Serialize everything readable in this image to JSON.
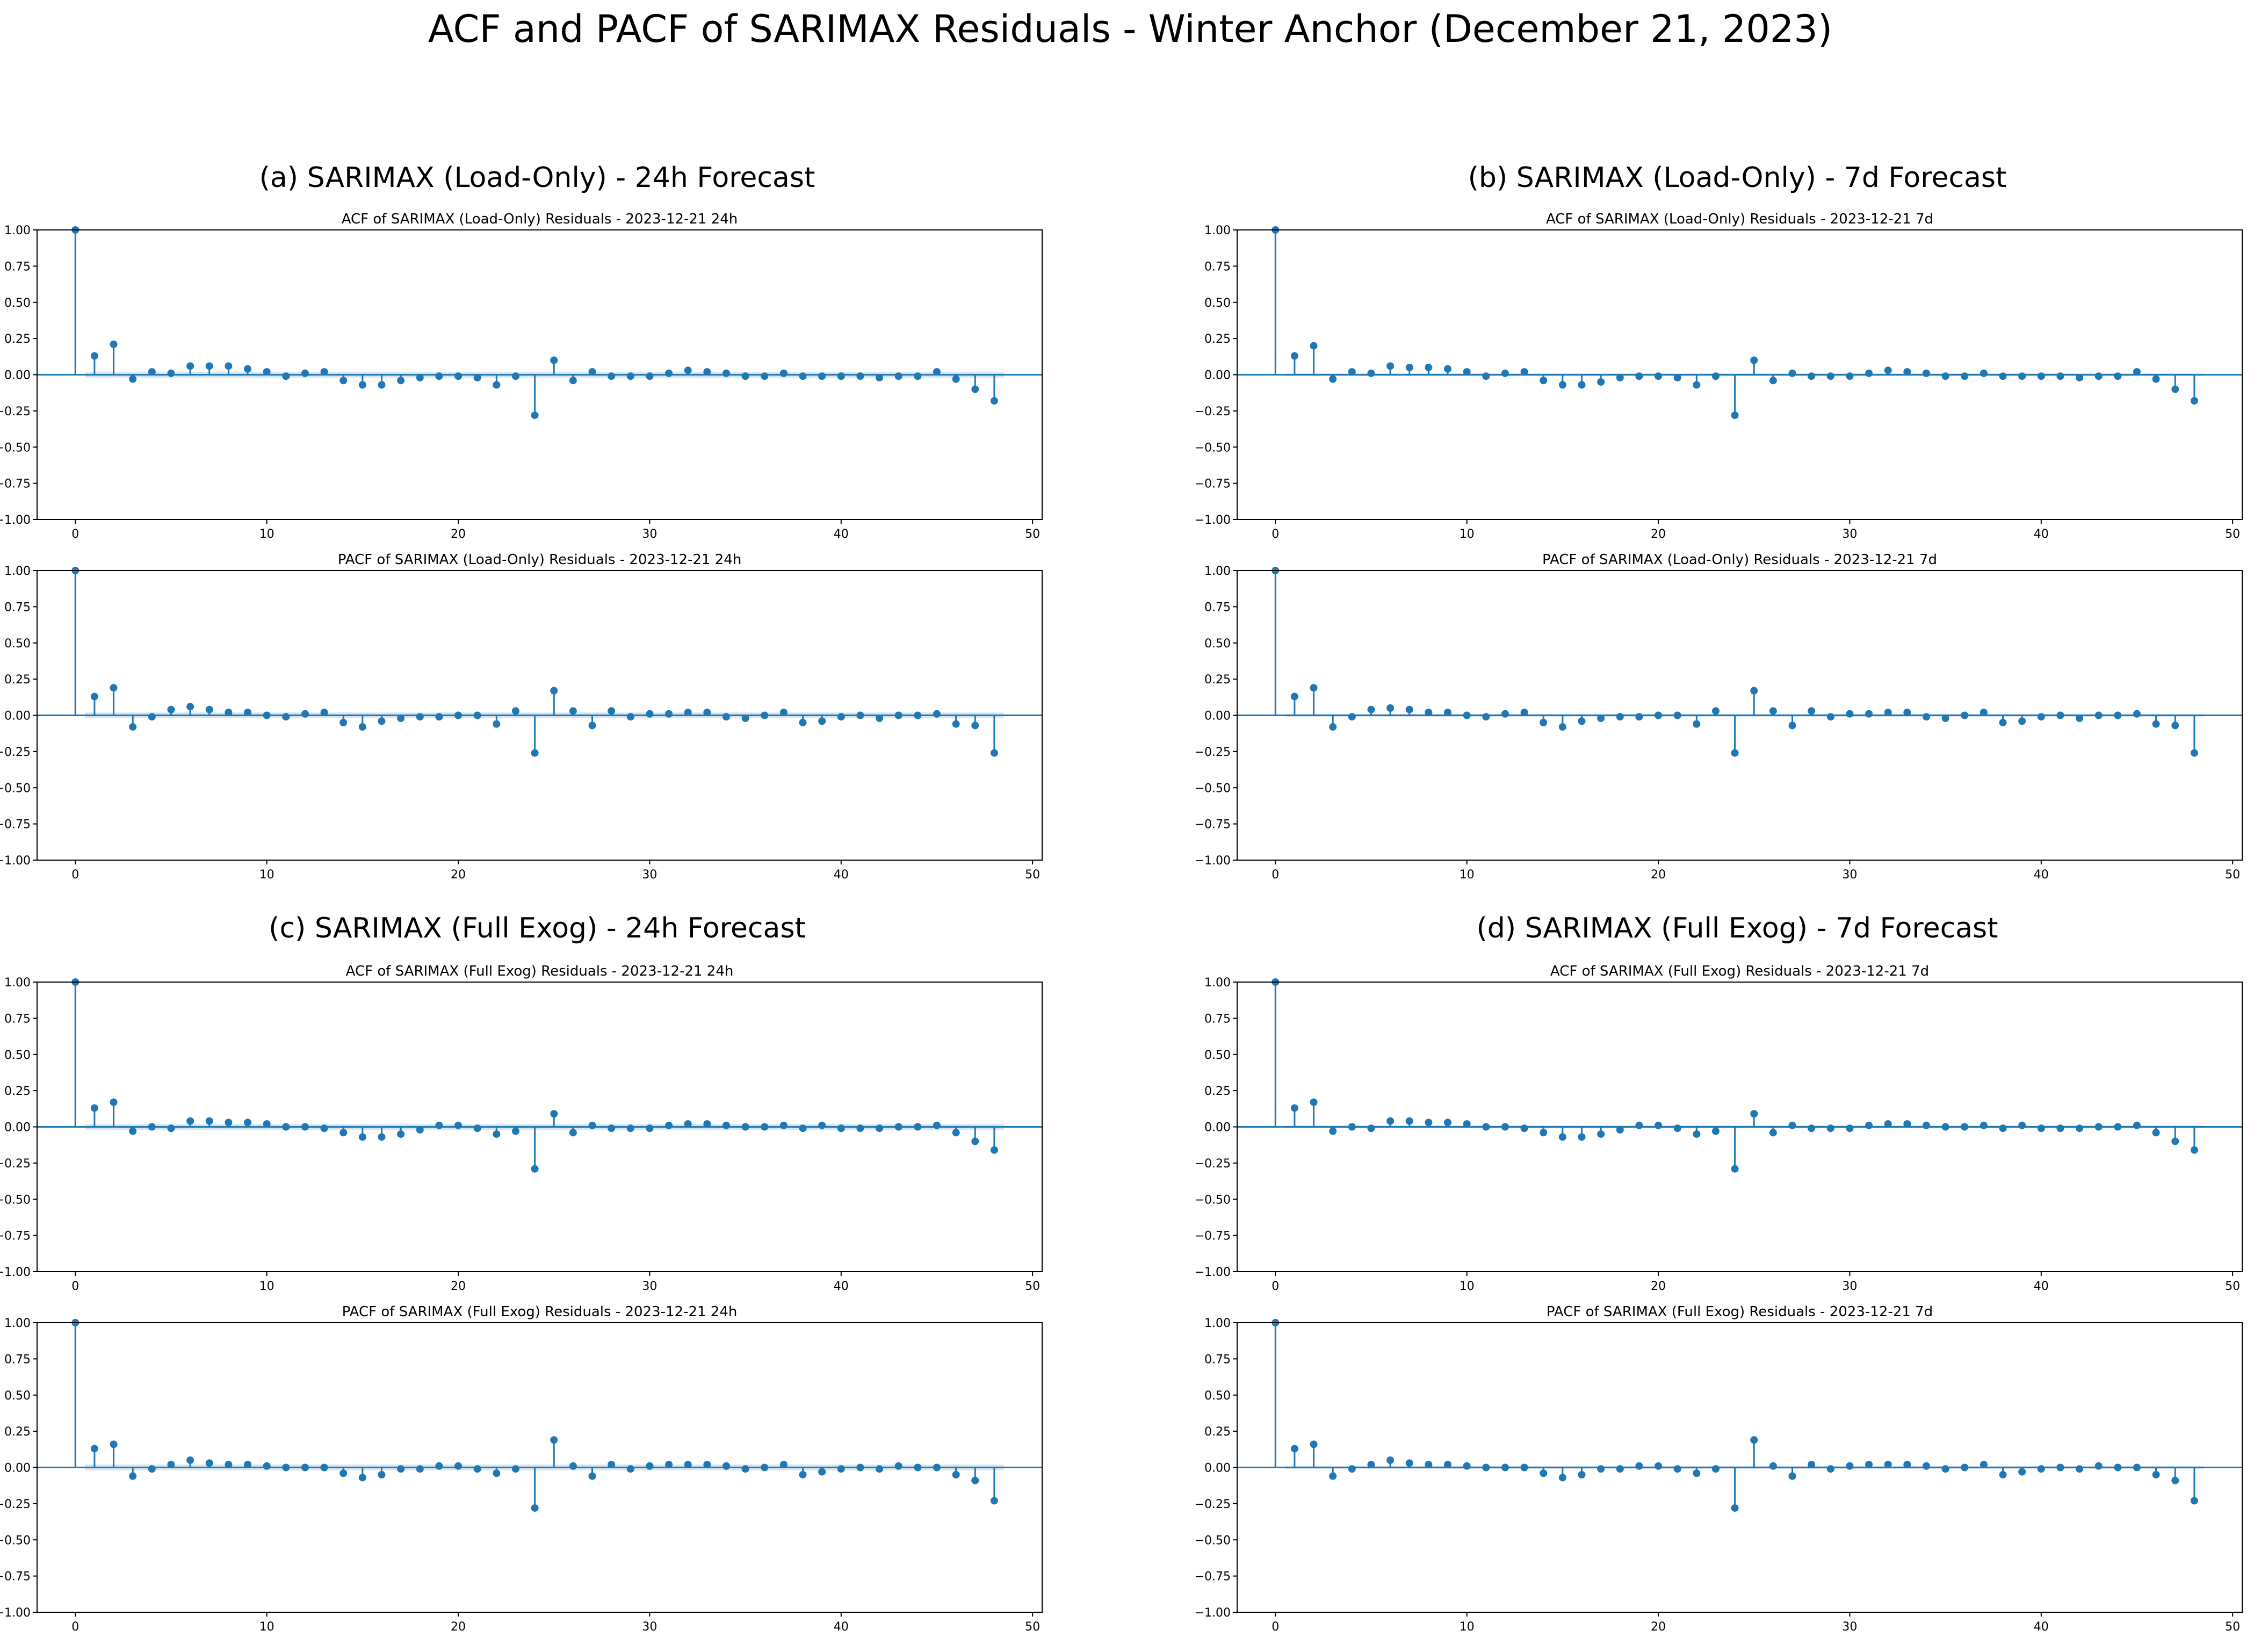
{
  "figure_title": "ACF and PACF of SARIMAX Residuals - Winter Anchor (December 21, 2023)",
  "panels": [
    {
      "label": "(a) SARIMAX (Load-Only) - 24h Forecast"
    },
    {
      "label": "(b) SARIMAX (Load-Only) - 7d Forecast"
    },
    {
      "label": "(c) SARIMAX (Full Exog) - 24h Forecast"
    },
    {
      "label": "(d) SARIMAX (Full Exog) - 7d Forecast"
    }
  ],
  "colors": {
    "stem": "#1f77b4",
    "confidence_band": "#1f77b4"
  },
  "chart_data": [
    {
      "type": "scatter",
      "panel": "(a)",
      "title": "ACF of SARIMAX (Load-Only) Residuals - 2023-12-21 24h",
      "xlabel": "",
      "ylabel": "",
      "xlim": [
        -2,
        50.5
      ],
      "ylim": [
        -1.0,
        1.0
      ],
      "grid": false,
      "confidence_band": 0.02,
      "x_ticks": [
        "0",
        "10",
        "20",
        "30",
        "40",
        "50"
      ],
      "y_ticks": [
        "1.00",
        "0.75",
        "0.50",
        "0.25",
        "0.00",
        "−0.25",
        "−0.50",
        "−0.75",
        "−1.00"
      ],
      "values": [
        1.0,
        0.13,
        0.21,
        -0.03,
        0.02,
        0.01,
        0.06,
        0.06,
        0.06,
        0.04,
        0.02,
        -0.01,
        0.01,
        0.02,
        -0.04,
        -0.07,
        -0.07,
        -0.04,
        -0.02,
        -0.01,
        -0.01,
        -0.02,
        -0.07,
        -0.01,
        -0.28,
        0.1,
        -0.04,
        0.02,
        -0.01,
        -0.01,
        -0.01,
        0.01,
        0.03,
        0.02,
        0.01,
        -0.01,
        -0.01,
        0.01,
        -0.01,
        -0.01,
        -0.01,
        -0.01,
        -0.02,
        -0.01,
        -0.01,
        0.02,
        -0.03,
        -0.1,
        -0.18
      ]
    },
    {
      "type": "scatter",
      "panel": "(a)",
      "title": "PACF of SARIMAX (Load-Only) Residuals - 2023-12-21 24h",
      "xlabel": "",
      "ylabel": "",
      "xlim": [
        -2,
        50.5
      ],
      "ylim": [
        -1.0,
        1.0
      ],
      "grid": false,
      "confidence_band": 0.02,
      "x_ticks": [
        "0",
        "10",
        "20",
        "30",
        "40",
        "50"
      ],
      "y_ticks": [
        "1.00",
        "0.75",
        "0.50",
        "0.25",
        "0.00",
        "−0.25",
        "−0.50",
        "−0.75",
        "−1.00"
      ],
      "values": [
        1.0,
        0.13,
        0.19,
        -0.08,
        -0.01,
        0.04,
        0.06,
        0.04,
        0.02,
        0.02,
        0.0,
        -0.01,
        0.01,
        0.02,
        -0.05,
        -0.08,
        -0.04,
        -0.02,
        -0.01,
        -0.01,
        0.0,
        0.0,
        -0.06,
        0.03,
        -0.26,
        0.17,
        0.03,
        -0.07,
        0.03,
        -0.01,
        0.01,
        0.01,
        0.02,
        0.02,
        -0.01,
        -0.02,
        0.0,
        0.02,
        -0.05,
        -0.04,
        -0.01,
        0.0,
        -0.02,
        0.0,
        0.0,
        0.01,
        -0.06,
        -0.07,
        -0.26
      ]
    },
    {
      "type": "scatter",
      "panel": "(b)",
      "title": "ACF of SARIMAX (Load-Only) Residuals - 2023-12-21 7d",
      "xlabel": "",
      "ylabel": "",
      "xlim": [
        -2,
        50.5
      ],
      "ylim": [
        -1.0,
        1.0
      ],
      "grid": false,
      "confidence_band": 0.01,
      "x_ticks": [
        "0",
        "10",
        "20",
        "30",
        "40",
        "50"
      ],
      "y_ticks": [
        "1.00",
        "0.75",
        "0.50",
        "0.25",
        "0.00",
        "−0.25",
        "−0.50",
        "−0.75",
        "−1.00"
      ],
      "values": [
        1.0,
        0.13,
        0.2,
        -0.03,
        0.02,
        0.01,
        0.06,
        0.05,
        0.05,
        0.04,
        0.02,
        -0.01,
        0.01,
        0.02,
        -0.04,
        -0.07,
        -0.07,
        -0.05,
        -0.02,
        -0.01,
        -0.01,
        -0.02,
        -0.07,
        -0.01,
        -0.28,
        0.1,
        -0.04,
        0.01,
        -0.01,
        -0.01,
        -0.01,
        0.01,
        0.03,
        0.02,
        0.01,
        -0.01,
        -0.01,
        0.01,
        -0.01,
        -0.01,
        -0.01,
        -0.01,
        -0.02,
        -0.01,
        -0.01,
        0.02,
        -0.03,
        -0.1,
        -0.18
      ]
    },
    {
      "type": "scatter",
      "panel": "(b)",
      "title": "PACF of SARIMAX (Load-Only) Residuals - 2023-12-21 7d",
      "xlabel": "",
      "ylabel": "",
      "xlim": [
        -2,
        50.5
      ],
      "ylim": [
        -1.0,
        1.0
      ],
      "grid": false,
      "confidence_band": 0.01,
      "x_ticks": [
        "0",
        "10",
        "20",
        "30",
        "40",
        "50"
      ],
      "y_ticks": [
        "1.00",
        "0.75",
        "0.50",
        "0.25",
        "0.00",
        "−0.25",
        "−0.50",
        "−0.75",
        "−1.00"
      ],
      "values": [
        1.0,
        0.13,
        0.19,
        -0.08,
        -0.01,
        0.04,
        0.05,
        0.04,
        0.02,
        0.02,
        0.0,
        -0.01,
        0.01,
        0.02,
        -0.05,
        -0.08,
        -0.04,
        -0.02,
        -0.01,
        -0.01,
        0.0,
        0.0,
        -0.06,
        0.03,
        -0.26,
        0.17,
        0.03,
        -0.07,
        0.03,
        -0.01,
        0.01,
        0.01,
        0.02,
        0.02,
        -0.01,
        -0.02,
        0.0,
        0.02,
        -0.05,
        -0.04,
        -0.01,
        0.0,
        -0.02,
        0.0,
        0.0,
        0.01,
        -0.06,
        -0.07,
        -0.26
      ]
    },
    {
      "type": "scatter",
      "panel": "(c)",
      "title": "ACF of SARIMAX (Full Exog) Residuals - 2023-12-21 24h",
      "xlabel": "",
      "ylabel": "",
      "xlim": [
        -2,
        50.5
      ],
      "ylim": [
        -1.0,
        1.0
      ],
      "grid": false,
      "confidence_band": 0.02,
      "x_ticks": [
        "0",
        "10",
        "20",
        "30",
        "40",
        "50"
      ],
      "y_ticks": [
        "1.00",
        "0.75",
        "0.50",
        "0.25",
        "0.00",
        "−0.25",
        "−0.50",
        "−0.75",
        "−1.00"
      ],
      "values": [
        1.0,
        0.13,
        0.17,
        -0.03,
        0.0,
        -0.01,
        0.04,
        0.04,
        0.03,
        0.03,
        0.02,
        0.0,
        0.0,
        -0.01,
        -0.04,
        -0.07,
        -0.07,
        -0.05,
        -0.02,
        0.01,
        0.01,
        -0.01,
        -0.05,
        -0.03,
        -0.29,
        0.09,
        -0.04,
        0.01,
        -0.01,
        -0.01,
        -0.01,
        0.01,
        0.02,
        0.02,
        0.01,
        0.0,
        0.0,
        0.01,
        -0.01,
        0.01,
        -0.01,
        -0.01,
        -0.01,
        0.0,
        0.0,
        0.01,
        -0.04,
        -0.1,
        -0.16
      ]
    },
    {
      "type": "scatter",
      "panel": "(c)",
      "title": "PACF of SARIMAX (Full Exog) Residuals - 2023-12-21 24h",
      "xlabel": "",
      "ylabel": "",
      "xlim": [
        -2,
        50.5
      ],
      "ylim": [
        -1.0,
        1.0
      ],
      "grid": false,
      "confidence_band": 0.02,
      "x_ticks": [
        "0",
        "10",
        "20",
        "30",
        "40",
        "50"
      ],
      "y_ticks": [
        "1.00",
        "0.75",
        "0.50",
        "0.25",
        "0.00",
        "−0.25",
        "−0.50",
        "−0.75",
        "−1.00"
      ],
      "values": [
        1.0,
        0.13,
        0.16,
        -0.06,
        -0.01,
        0.02,
        0.05,
        0.03,
        0.02,
        0.02,
        0.01,
        0.0,
        0.0,
        0.0,
        -0.04,
        -0.07,
        -0.05,
        -0.01,
        -0.01,
        0.01,
        0.01,
        -0.01,
        -0.04,
        -0.01,
        -0.28,
        0.19,
        0.01,
        -0.06,
        0.02,
        -0.01,
        0.01,
        0.02,
        0.02,
        0.02,
        0.01,
        -0.01,
        0.0,
        0.02,
        -0.05,
        -0.03,
        -0.01,
        0.0,
        -0.01,
        0.01,
        0.0,
        0.0,
        -0.05,
        -0.09,
        -0.23
      ]
    },
    {
      "type": "scatter",
      "panel": "(d)",
      "title": "ACF of SARIMAX (Full Exog) Residuals - 2023-12-21 7d",
      "xlabel": "",
      "ylabel": "",
      "xlim": [
        -2,
        50.5
      ],
      "ylim": [
        -1.0,
        1.0
      ],
      "grid": false,
      "confidence_band": 0.01,
      "x_ticks": [
        "0",
        "10",
        "20",
        "30",
        "40",
        "50"
      ],
      "y_ticks": [
        "1.00",
        "0.75",
        "0.50",
        "0.25",
        "0.00",
        "−0.25",
        "−0.50",
        "−0.75",
        "−1.00"
      ],
      "values": [
        1.0,
        0.13,
        0.17,
        -0.03,
        0.0,
        -0.01,
        0.04,
        0.04,
        0.03,
        0.03,
        0.02,
        0.0,
        0.0,
        -0.01,
        -0.04,
        -0.07,
        -0.07,
        -0.05,
        -0.02,
        0.01,
        0.01,
        -0.01,
        -0.05,
        -0.03,
        -0.29,
        0.09,
        -0.04,
        0.01,
        -0.01,
        -0.01,
        -0.01,
        0.01,
        0.02,
        0.02,
        0.01,
        0.0,
        0.0,
        0.01,
        -0.01,
        0.01,
        -0.01,
        -0.01,
        -0.01,
        0.0,
        0.0,
        0.01,
        -0.04,
        -0.1,
        -0.16
      ]
    },
    {
      "type": "scatter",
      "panel": "(d)",
      "title": "PACF of SARIMAX (Full Exog) Residuals - 2023-12-21 7d",
      "xlabel": "",
      "ylabel": "",
      "xlim": [
        -2,
        50.5
      ],
      "ylim": [
        -1.0,
        1.0
      ],
      "grid": false,
      "confidence_band": 0.01,
      "x_ticks": [
        "0",
        "10",
        "20",
        "30",
        "40",
        "50"
      ],
      "y_ticks": [
        "1.00",
        "0.75",
        "0.50",
        "0.25",
        "0.00",
        "−0.25",
        "−0.50",
        "−0.75",
        "−1.00"
      ],
      "values": [
        1.0,
        0.13,
        0.16,
        -0.06,
        -0.01,
        0.02,
        0.05,
        0.03,
        0.02,
        0.02,
        0.01,
        0.0,
        0.0,
        0.0,
        -0.04,
        -0.07,
        -0.05,
        -0.01,
        -0.01,
        0.01,
        0.01,
        -0.01,
        -0.04,
        -0.01,
        -0.28,
        0.19,
        0.01,
        -0.06,
        0.02,
        -0.01,
        0.01,
        0.02,
        0.02,
        0.02,
        0.01,
        -0.01,
        0.0,
        0.02,
        -0.05,
        -0.03,
        -0.01,
        0.0,
        -0.01,
        0.01,
        0.0,
        0.0,
        -0.05,
        -0.09,
        -0.23
      ]
    }
  ]
}
